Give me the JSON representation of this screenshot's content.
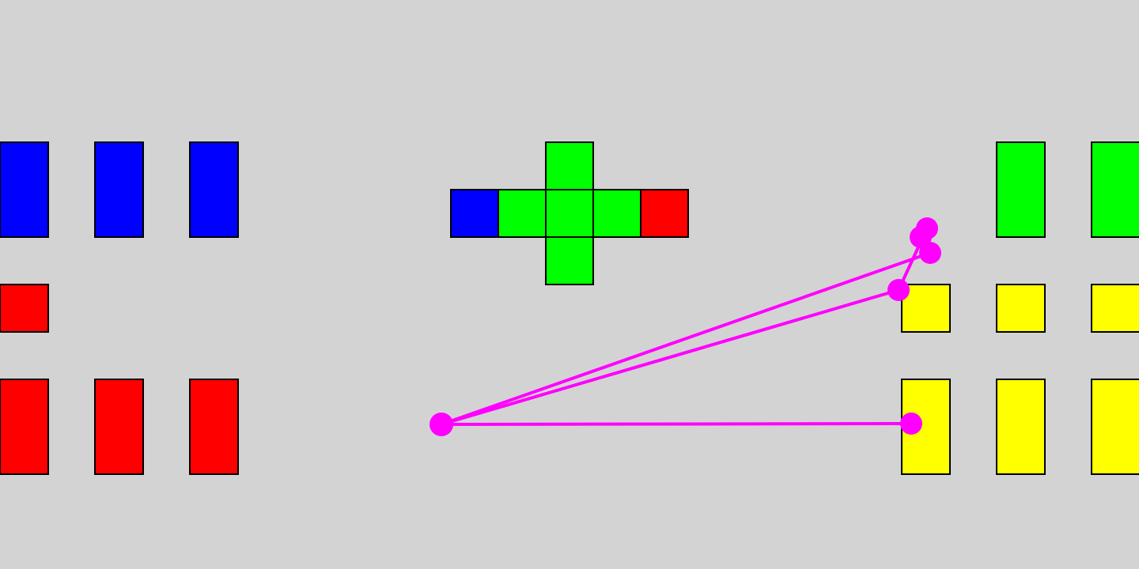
{
  "colors": {
    "background": "#d3d3d3",
    "blue": "#0000ff",
    "green": "#00ff00",
    "red": "#ff0000",
    "yellow": "#ffff00",
    "pointer_trace": "#ff00ff",
    "tile_border": "#000000"
  },
  "groups": {
    "left_top": {
      "color": "blue",
      "count": 3
    },
    "left_middle": {
      "color": "red",
      "count": 1
    },
    "left_bottom": {
      "color": "red",
      "count": 3
    },
    "cross_center": {
      "color": "green"
    },
    "cross_left_end": {
      "color": "blue"
    },
    "cross_right_end": {
      "color": "red"
    },
    "right_top": {
      "color": "green",
      "count": 2
    },
    "right_middle": {
      "color": "yellow",
      "count": 3
    },
    "right_bottom": {
      "color": "yellow",
      "count": 3
    }
  },
  "pointer_trace": {
    "color": "#ff00ff",
    "waypoints": 6
  }
}
